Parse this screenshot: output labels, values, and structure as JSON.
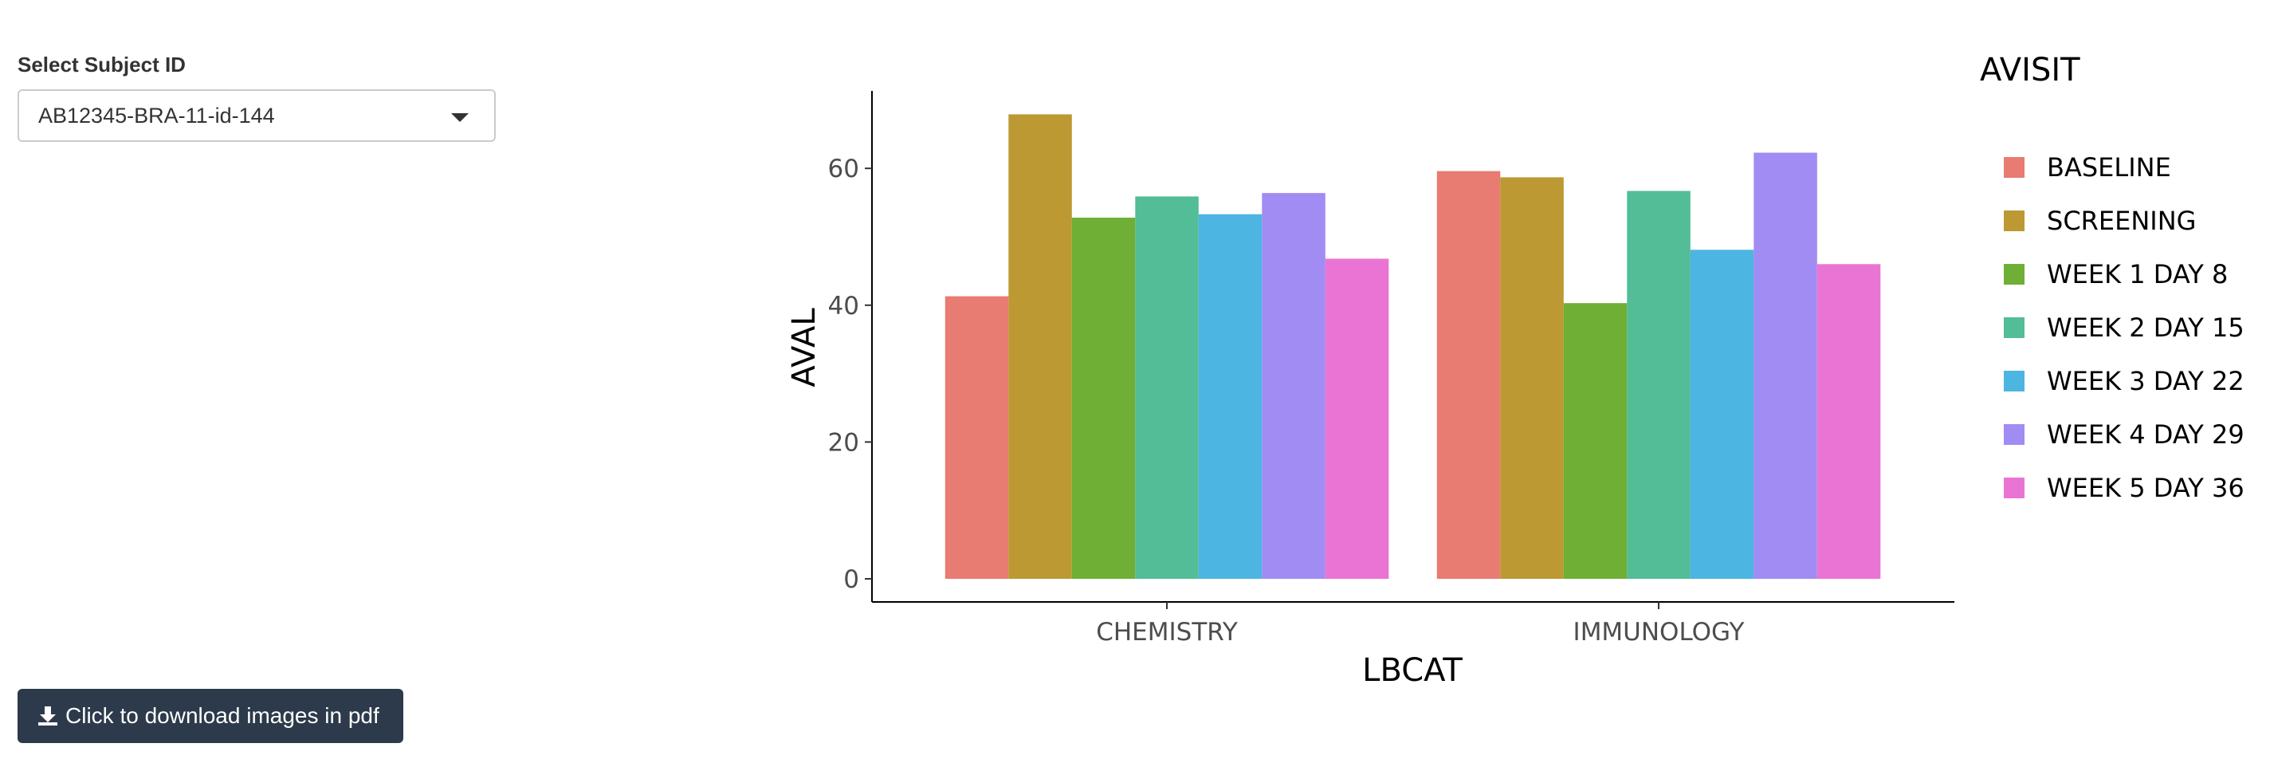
{
  "sidebar": {
    "select_label": "Select Subject ID",
    "selected_subject": "AB12345-BRA-11-id-144",
    "download_label": "Click to download images in pdf"
  },
  "icons": {
    "dropdown": "chevron-down-icon",
    "download": "download-icon"
  },
  "colors": {
    "button_bg": "#2c3a4b"
  },
  "chart_data": {
    "type": "bar",
    "title": "",
    "xlabel": "LBCAT",
    "ylabel": "AVAL",
    "ylim": [
      0,
      71
    ],
    "yticks": [
      0,
      20,
      40,
      60
    ],
    "grid": false,
    "legend_title": "AVISIT",
    "legend_position": "right",
    "categories": [
      "CHEMISTRY",
      "IMMUNOLOGY"
    ],
    "series": [
      {
        "name": "BASELINE",
        "color": "#E87B72",
        "values": [
          41.3,
          59.6
        ]
      },
      {
        "name": "SCREENING",
        "color": "#BC9932",
        "values": [
          67.9,
          58.7
        ]
      },
      {
        "name": "WEEK 1 DAY 8",
        "color": "#6FAF35",
        "values": [
          52.8,
          40.3
        ]
      },
      {
        "name": "WEEK 2 DAY 15",
        "color": "#52BD97",
        "values": [
          55.9,
          56.7
        ]
      },
      {
        "name": "WEEK 3 DAY 22",
        "color": "#4CB5E2",
        "values": [
          53.3,
          48.1
        ]
      },
      {
        "name": "WEEK 4 DAY 29",
        "color": "#A18CF3",
        "values": [
          56.4,
          62.3
        ]
      },
      {
        "name": "WEEK 5 DAY 36",
        "color": "#EA74D3",
        "values": [
          46.8,
          46.0
        ]
      }
    ]
  }
}
